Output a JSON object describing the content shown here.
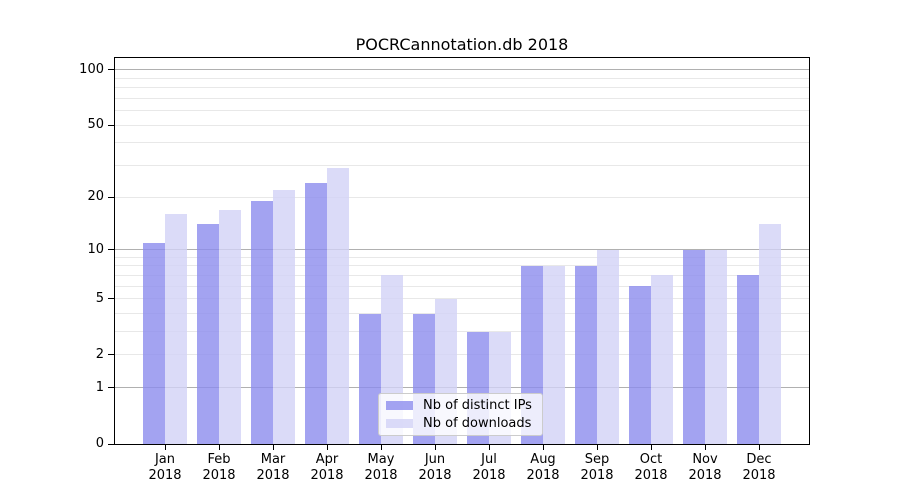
{
  "chart_data": {
    "type": "bar",
    "title": "POCRCannotation.db 2018",
    "year": "2018",
    "categories": [
      "Jan",
      "Feb",
      "Mar",
      "Apr",
      "May",
      "Jun",
      "Jul",
      "Aug",
      "Sep",
      "Oct",
      "Nov",
      "Dec"
    ],
    "series": [
      {
        "name": "Nb of distinct IPs",
        "color": "rgba(140,140,238,0.8)",
        "values": [
          11,
          14,
          19,
          24,
          4,
          4,
          3,
          8,
          8,
          6,
          10,
          7
        ]
      },
      {
        "name": "Nb of downloads",
        "color": "rgba(210,210,246,0.8)",
        "values": [
          16,
          17,
          22,
          29,
          7,
          5,
          3,
          8,
          10,
          7,
          10,
          14
        ]
      }
    ],
    "xlabel": "",
    "ylabel": "",
    "yscale": "log1p",
    "ylim": [
      0,
      116
    ],
    "y_ticks": [
      0,
      1,
      2,
      5,
      10,
      20,
      50,
      100
    ],
    "y_major_gridlines": [
      1,
      10,
      100
    ],
    "y_minor_gridlines": [
      2,
      3,
      4,
      5,
      6,
      7,
      8,
      9,
      20,
      30,
      40,
      50,
      60,
      70,
      80,
      90
    ],
    "grid_colors": {
      "major": "#b0b0b0",
      "minor": "#e8e8e8"
    },
    "legend": {
      "position": "lower center"
    },
    "background": "#ffffff",
    "text_color": "#000000"
  }
}
